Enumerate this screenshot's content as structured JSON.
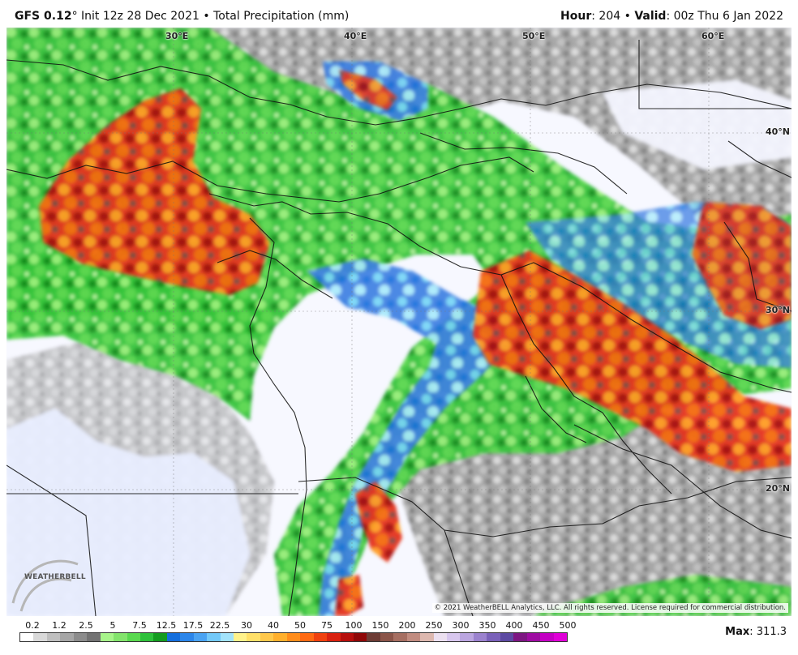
{
  "header": {
    "model": "GFS 0.12",
    "degree": "°",
    "init": "Init 12z 28 Dec 2021",
    "bullet": "•",
    "field": "Total Precipitation (mm)",
    "hour_label": "Hour",
    "hour_value": ": 204",
    "valid_label": "Valid",
    "valid_value": ": 00z Thu 6 Jan 2022"
  },
  "map": {
    "longitude_labels": [
      "30°E",
      "40°E",
      "50°E",
      "60°E"
    ],
    "latitude_labels": [
      "40°N",
      "30°N",
      "20°N"
    ],
    "copyright": "© 2021 WeatherBELL Analytics, LLC. All rights reserved. License required for commercial distribution.",
    "logo_text": "WEATHERBELL",
    "logo_icon": "weatherbell-logo",
    "precip_colors": {
      "trace": "#c8c8c8",
      "light": "#8a8a8a",
      "green_light": "#98ee78",
      "green_mid": "#42d13a",
      "green_dark": "#139d1c",
      "blue": "#4a7fe8",
      "cyan": "#5fd7f2",
      "yellow": "#f7ee7d",
      "orange": "#fda62a",
      "red": "#e52b1f",
      "dark_red": "#8d0b0b",
      "brown": "#7f5b4a"
    }
  },
  "legend": {
    "labels": [
      "0.2",
      "1.2",
      "2.5",
      "5",
      "7.5",
      "12.5",
      "17.5",
      "22.5",
      "30",
      "40",
      "50",
      "75",
      "100",
      "150",
      "200",
      "250",
      "300",
      "350",
      "400",
      "450",
      "500"
    ],
    "colors": [
      "#ffffff",
      "#d9d9d9",
      "#bfbfbf",
      "#a6a6a6",
      "#8c8c8c",
      "#737373",
      "#a7f48a",
      "#83e46c",
      "#59d94f",
      "#2ec13b",
      "#149c20",
      "#156fdd",
      "#2c86ea",
      "#4aa3f2",
      "#73c9f9",
      "#a3e3fb",
      "#fff28b",
      "#ffe069",
      "#ffc84b",
      "#ffb02d",
      "#ff8d1c",
      "#ff6a13",
      "#f0410f",
      "#d9210f",
      "#b60f0d",
      "#8f0808",
      "#6d3c35",
      "#8b5549",
      "#a66f62",
      "#c18c80",
      "#ddb8af",
      "#ece0f0",
      "#d8c7ee",
      "#bba6e0",
      "#9b82ce",
      "#7a61b9",
      "#5d4aa2",
      "#7d1782",
      "#9e0ca2",
      "#c400c4",
      "#e000d8"
    ],
    "max_label": "Max",
    "max_value": ": 311.3"
  }
}
